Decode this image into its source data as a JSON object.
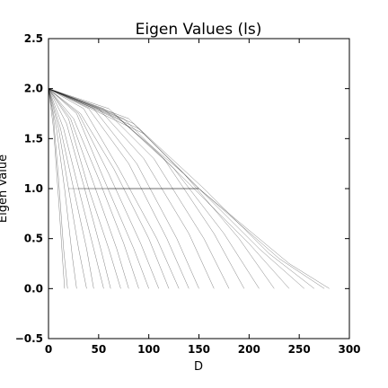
{
  "chart_data": {
    "type": "line",
    "title": "Eigen Values (ls)",
    "xlabel": "D",
    "ylabel": "Eigen Value",
    "xlim": [
      0,
      300
    ],
    "ylim": [
      -0.5,
      2.5
    ],
    "xticks": [
      0,
      50,
      100,
      150,
      200,
      250,
      300
    ],
    "yticks": [
      -0.5,
      0.0,
      0.5,
      1.0,
      1.5,
      2.0,
      2.5
    ],
    "xtick_labels": [
      "0",
      "50",
      "100",
      "150",
      "200",
      "250",
      "300"
    ],
    "ytick_labels": [
      "−0.5",
      "0.0",
      "0.5",
      "1.0",
      "1.5",
      "2.0",
      "2.5"
    ],
    "grid": false,
    "legend": "none",
    "line_color": "#000000",
    "description_of_series": "Many descending eigenvalue curves starting near 2.0 at D=0 and dropping to 0.0; a flat cluster at 1.0 spans D≈20–150; the longest curves reach 0.0 near D≈280.",
    "series": [
      {
        "x": [
          0,
          5,
          10,
          14,
          16
        ],
        "y": [
          2.0,
          1.6,
          0.9,
          0.3,
          0.0
        ]
      },
      {
        "x": [
          0,
          5,
          10,
          15,
          19
        ],
        "y": [
          2.0,
          1.7,
          1.1,
          0.4,
          0.0
        ]
      },
      {
        "x": [
          0,
          8,
          16,
          24,
          28
        ],
        "y": [
          2.0,
          1.6,
          1.0,
          0.3,
          0.0
        ]
      },
      {
        "x": [
          0,
          10,
          20,
          30,
          38
        ],
        "y": [
          2.0,
          1.6,
          1.0,
          0.4,
          0.0
        ]
      },
      {
        "x": [
          0,
          12,
          25,
          38,
          45
        ],
        "y": [
          2.0,
          1.6,
          1.0,
          0.4,
          0.0
        ]
      },
      {
        "x": [
          0,
          15,
          30,
          45,
          55
        ],
        "y": [
          2.0,
          1.6,
          1.0,
          0.4,
          0.0
        ]
      },
      {
        "x": [
          0,
          18,
          36,
          52,
          62
        ],
        "y": [
          2.0,
          1.65,
          1.0,
          0.4,
          0.0
        ]
      },
      {
        "x": [
          0,
          20,
          40,
          60,
          72
        ],
        "y": [
          2.0,
          1.7,
          1.0,
          0.4,
          0.0
        ]
      },
      {
        "x": [
          0,
          22,
          45,
          68,
          80
        ],
        "y": [
          2.0,
          1.7,
          1.05,
          0.4,
          0.0
        ]
      },
      {
        "x": [
          0,
          25,
          50,
          75,
          90
        ],
        "y": [
          2.0,
          1.7,
          1.1,
          0.45,
          0.0
        ]
      },
      {
        "x": [
          0,
          28,
          55,
          85,
          100
        ],
        "y": [
          2.0,
          1.75,
          1.1,
          0.4,
          0.0
        ]
      },
      {
        "x": [
          0,
          30,
          60,
          92,
          110
        ],
        "y": [
          2.0,
          1.75,
          1.15,
          0.45,
          0.0
        ]
      },
      {
        "x": [
          0,
          32,
          65,
          100,
          120
        ],
        "y": [
          2.0,
          1.75,
          1.2,
          0.5,
          0.0
        ]
      },
      {
        "x": [
          0,
          35,
          70,
          108,
          130
        ],
        "y": [
          2.0,
          1.8,
          1.2,
          0.5,
          0.0
        ]
      },
      {
        "x": [
          0,
          40,
          80,
          118,
          140
        ],
        "y": [
          2.0,
          1.8,
          1.25,
          0.5,
          0.0
        ]
      },
      {
        "x": [
          0,
          45,
          88,
          128,
          150
        ],
        "y": [
          2.0,
          1.8,
          1.25,
          0.5,
          0.0
        ]
      },
      {
        "x": [
          0,
          50,
          95,
          140,
          165
        ],
        "y": [
          2.0,
          1.8,
          1.3,
          0.55,
          0.0
        ]
      },
      {
        "x": [
          0,
          55,
          105,
          155,
          180
        ],
        "y": [
          2.0,
          1.8,
          1.3,
          0.5,
          0.0
        ]
      },
      {
        "x": [
          0,
          60,
          115,
          165,
          195
        ],
        "y": [
          2.0,
          1.8,
          1.3,
          0.55,
          0.0
        ]
      },
      {
        "x": [
          0,
          65,
          125,
          175,
          210
        ],
        "y": [
          2.0,
          1.75,
          1.2,
          0.55,
          0.0
        ]
      },
      {
        "x": [
          0,
          70,
          135,
          190,
          225
        ],
        "y": [
          2.0,
          1.7,
          1.15,
          0.5,
          0.0
        ]
      },
      {
        "x": [
          0,
          75,
          140,
          200,
          240
        ],
        "y": [
          2.0,
          1.7,
          1.05,
          0.45,
          0.0
        ]
      },
      {
        "x": [
          0,
          80,
          150,
          210,
          255
        ],
        "y": [
          2.0,
          1.7,
          1.0,
          0.4,
          0.0
        ]
      },
      {
        "x": [
          0,
          85,
          155,
          220,
          265
        ],
        "y": [
          2.0,
          1.65,
          1.0,
          0.35,
          0.0
        ]
      },
      {
        "x": [
          0,
          90,
          150,
          230,
          275
        ],
        "y": [
          2.0,
          1.6,
          1.0,
          0.3,
          0.0
        ]
      },
      {
        "x": [
          0,
          95,
          150,
          240,
          280
        ],
        "y": [
          2.0,
          1.55,
          1.0,
          0.25,
          0.0
        ]
      },
      {
        "x": [
          20,
          150
        ],
        "y": [
          1.0,
          1.0
        ]
      },
      {
        "x": [
          30,
          150
        ],
        "y": [
          1.0,
          1.0
        ]
      },
      {
        "x": [
          60,
          150
        ],
        "y": [
          1.0,
          1.0
        ]
      }
    ]
  }
}
